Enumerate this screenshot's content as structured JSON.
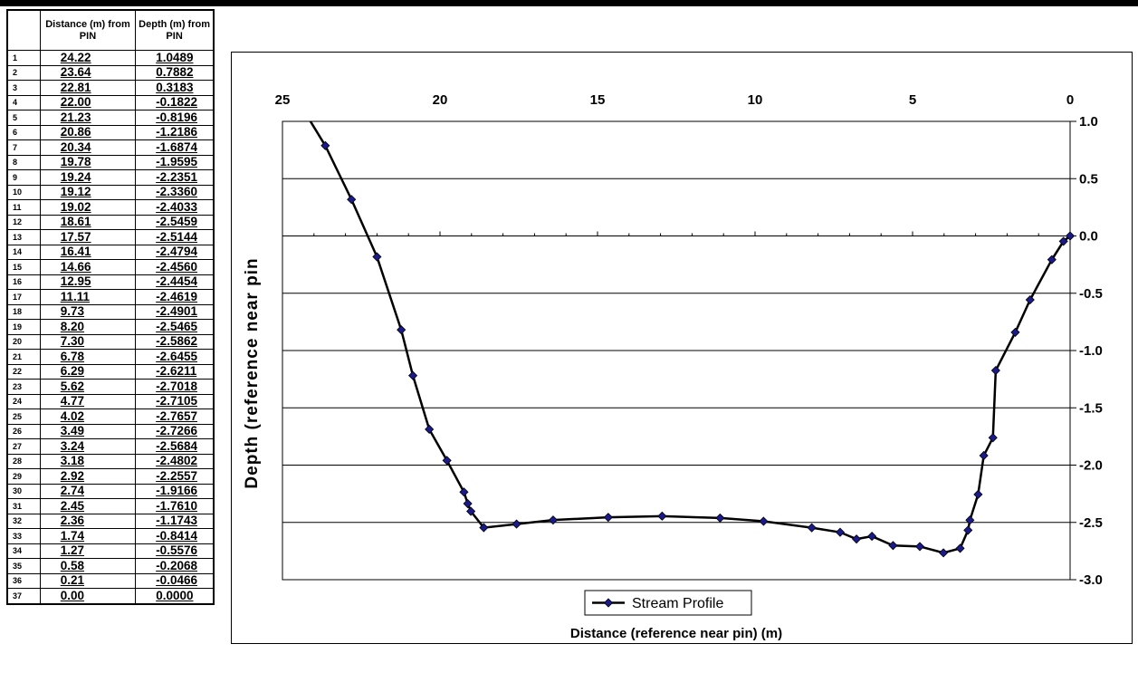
{
  "table": {
    "header": [
      "",
      "Distance (m) from PIN",
      "Depth (m) from PIN"
    ],
    "rows": [
      [
        "1",
        "24.22",
        "1.0489"
      ],
      [
        "2",
        "23.64",
        "0.7882"
      ],
      [
        "3",
        "22.81",
        "0.3183"
      ],
      [
        "4",
        "22.00",
        "-0.1822"
      ],
      [
        "5",
        "21.23",
        "-0.8196"
      ],
      [
        "6",
        "20.86",
        "-1.2186"
      ],
      [
        "7",
        "20.34",
        "-1.6874"
      ],
      [
        "8",
        "19.78",
        "-1.9595"
      ],
      [
        "9",
        "19.24",
        "-2.2351"
      ],
      [
        "10",
        "19.12",
        "-2.3360"
      ],
      [
        "11",
        "19.02",
        "-2.4033"
      ],
      [
        "12",
        "18.61",
        "-2.5459"
      ],
      [
        "13",
        "17.57",
        "-2.5144"
      ],
      [
        "14",
        "16.41",
        "-2.4794"
      ],
      [
        "15",
        "14.66",
        "-2.4560"
      ],
      [
        "16",
        "12.95",
        "-2.4454"
      ],
      [
        "17",
        "11.11",
        "-2.4619"
      ],
      [
        "18",
        "9.73",
        "-2.4901"
      ],
      [
        "19",
        "8.20",
        "-2.5465"
      ],
      [
        "20",
        "7.30",
        "-2.5862"
      ],
      [
        "21",
        "6.78",
        "-2.6455"
      ],
      [
        "22",
        "6.29",
        "-2.6211"
      ],
      [
        "23",
        "5.62",
        "-2.7018"
      ],
      [
        "24",
        "4.77",
        "-2.7105"
      ],
      [
        "25",
        "4.02",
        "-2.7657"
      ],
      [
        "26",
        "3.49",
        "-2.7266"
      ],
      [
        "27",
        "3.24",
        "-2.5684"
      ],
      [
        "28",
        "3.18",
        "-2.4802"
      ],
      [
        "29",
        "2.92",
        "-2.2557"
      ],
      [
        "30",
        "2.74",
        "-1.9166"
      ],
      [
        "31",
        "2.45",
        "-1.7610"
      ],
      [
        "32",
        "2.36",
        "-1.1743"
      ],
      [
        "33",
        "1.74",
        "-0.8414"
      ],
      [
        "34",
        "1.27",
        "-0.5576"
      ],
      [
        "35",
        "0.58",
        "-0.2068"
      ],
      [
        "36",
        "0.21",
        "-0.0466"
      ],
      [
        "37",
        "0.00",
        "0.0000"
      ]
    ]
  },
  "chart_data": {
    "type": "line",
    "title": "",
    "xlabel": "Distance (reference near pin) (m)",
    "ylabel": "Depth (reference near pin",
    "xlim": [
      25,
      0
    ],
    "ylim": [
      -3.0,
      1.0
    ],
    "x_reversed": true,
    "x_axis_position": "top",
    "y_axis_position": "right",
    "x_ticks": [
      "25",
      "20",
      "15",
      "10",
      "5",
      "0"
    ],
    "y_ticks": [
      "1.0",
      "0.5",
      "0.0",
      "-0.5",
      "-1.0",
      "-1.5",
      "-2.0",
      "-2.5",
      "-3.0"
    ],
    "grid": "horizontal",
    "legend": "bottom-center",
    "line_color": "#000000",
    "marker_color": "#1a1a8c",
    "series": [
      {
        "name": "Stream Profile",
        "x": [
          24.22,
          23.64,
          22.81,
          22.0,
          21.23,
          20.86,
          20.34,
          19.78,
          19.24,
          19.12,
          19.02,
          18.61,
          17.57,
          16.41,
          14.66,
          12.95,
          11.11,
          9.73,
          8.2,
          7.3,
          6.78,
          6.29,
          5.62,
          4.77,
          4.02,
          3.49,
          3.24,
          3.18,
          2.92,
          2.74,
          2.45,
          2.36,
          1.74,
          1.27,
          0.58,
          0.21,
          0.0
        ],
        "y": [
          1.0489,
          0.7882,
          0.3183,
          -0.1822,
          -0.8196,
          -1.2186,
          -1.6874,
          -1.9595,
          -2.2351,
          -2.336,
          -2.4033,
          -2.5459,
          -2.5144,
          -2.4794,
          -2.456,
          -2.4454,
          -2.4619,
          -2.4901,
          -2.5465,
          -2.5862,
          -2.6455,
          -2.6211,
          -2.7018,
          -2.7105,
          -2.7657,
          -2.7266,
          -2.5684,
          -2.4802,
          -2.2557,
          -1.9166,
          -1.761,
          -1.1743,
          -0.8414,
          -0.5576,
          -0.2068,
          -0.0466,
          0.0
        ]
      }
    ]
  }
}
